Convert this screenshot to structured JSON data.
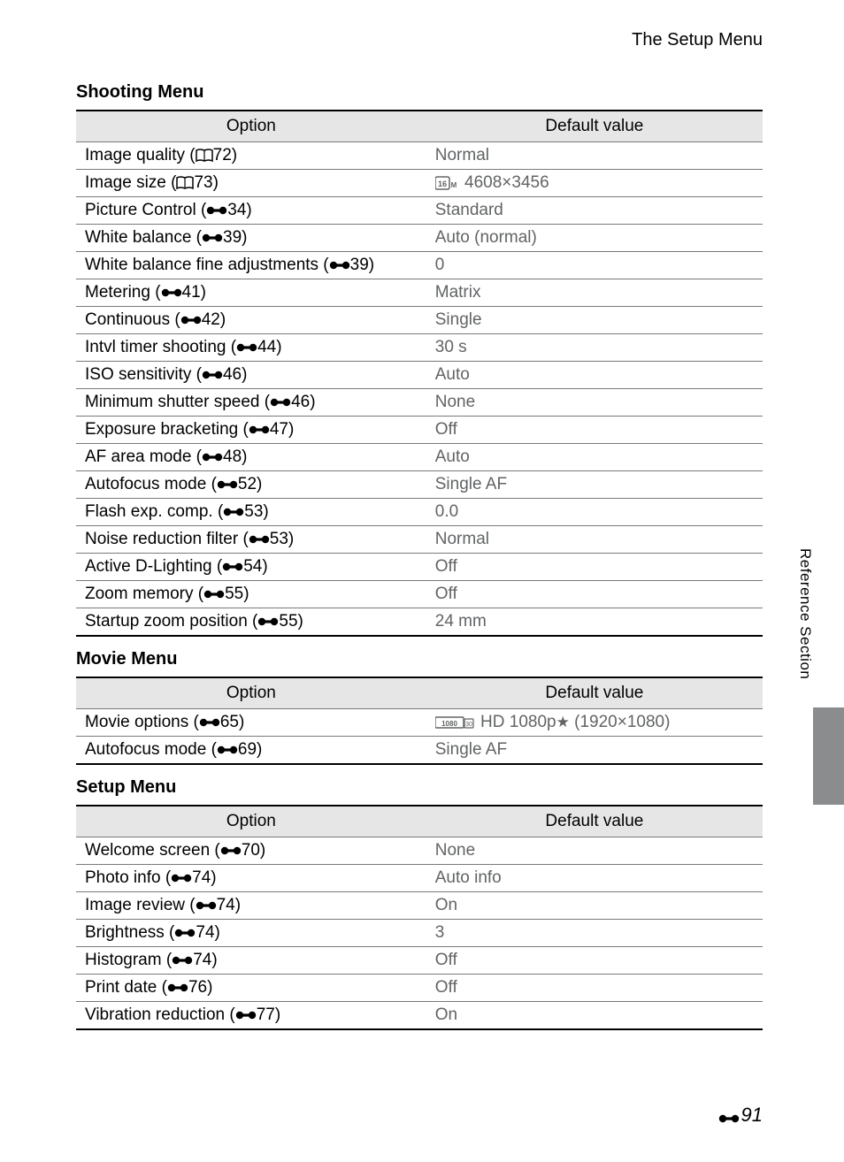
{
  "header": {
    "title": "The Setup Menu"
  },
  "columns": {
    "option": "Option",
    "default": "Default value"
  },
  "sections": [
    {
      "title": "Shooting Menu",
      "rows": [
        {
          "option": "Image quality (",
          "icon": "book",
          "ref": "72)",
          "value": "Normal",
          "valicon": ""
        },
        {
          "option": "Image size (",
          "icon": "book",
          "ref": "73)",
          "value": " 4608×3456",
          "valicon": "16m"
        },
        {
          "option": "Picture Control (",
          "icon": "bolt",
          "ref": "34)",
          "value": "Standard",
          "valicon": ""
        },
        {
          "option": "White balance (",
          "icon": "bolt",
          "ref": "39)",
          "value": "Auto (normal)",
          "valicon": ""
        },
        {
          "option": "White balance fine adjustments (",
          "icon": "bolt",
          "ref": "39)",
          "value": "0",
          "valicon": ""
        },
        {
          "option": "Metering (",
          "icon": "bolt",
          "ref": "41)",
          "value": "Matrix",
          "valicon": ""
        },
        {
          "option": "Continuous (",
          "icon": "bolt",
          "ref": "42)",
          "value": "Single",
          "valicon": ""
        },
        {
          "option": "Intvl timer shooting (",
          "icon": "bolt",
          "ref": "44)",
          "value": "30 s",
          "valicon": ""
        },
        {
          "option": "ISO sensitivity (",
          "icon": "bolt",
          "ref": "46)",
          "value": "Auto",
          "valicon": ""
        },
        {
          "option": "Minimum shutter speed (",
          "icon": "bolt",
          "ref": "46)",
          "value": "None",
          "valicon": ""
        },
        {
          "option": "Exposure bracketing (",
          "icon": "bolt",
          "ref": "47)",
          "value": "Off",
          "valicon": ""
        },
        {
          "option": "AF area mode (",
          "icon": "bolt",
          "ref": "48)",
          "value": "Auto",
          "valicon": ""
        },
        {
          "option": "Autofocus mode (",
          "icon": "bolt",
          "ref": "52)",
          "value": "Single AF",
          "valicon": ""
        },
        {
          "option": "Flash exp. comp. (",
          "icon": "bolt",
          "ref": "53)",
          "value": "0.0",
          "valicon": ""
        },
        {
          "option": "Noise reduction filter (",
          "icon": "bolt",
          "ref": "53)",
          "value": "Normal",
          "valicon": ""
        },
        {
          "option": "Active D-Lighting (",
          "icon": "bolt",
          "ref": "54)",
          "value": "Off",
          "valicon": ""
        },
        {
          "option": "Zoom memory (",
          "icon": "bolt",
          "ref": "55)",
          "value": "Off",
          "valicon": ""
        },
        {
          "option": "Startup zoom position (",
          "icon": "bolt",
          "ref": "55)",
          "value": "24 mm",
          "valicon": ""
        }
      ]
    },
    {
      "title": "Movie Menu",
      "rows": [
        {
          "option": "Movie options (",
          "icon": "bolt",
          "ref": "65)",
          "value": " HD 1080p★ (1920×1080)",
          "valicon": "1080"
        },
        {
          "option": "Autofocus mode (",
          "icon": "bolt",
          "ref": "69)",
          "value": "Single AF",
          "valicon": ""
        }
      ]
    },
    {
      "title": "Setup Menu",
      "rows": [
        {
          "option": "Welcome screen (",
          "icon": "bolt",
          "ref": "70)",
          "value": "None",
          "valicon": ""
        },
        {
          "option": "Photo info (",
          "icon": "bolt",
          "ref": "74)",
          "value": "Auto info",
          "valicon": ""
        },
        {
          "option": "Image review (",
          "icon": "bolt",
          "ref": "74)",
          "value": "On",
          "valicon": ""
        },
        {
          "option": "Brightness (",
          "icon": "bolt",
          "ref": "74)",
          "value": "3",
          "valicon": ""
        },
        {
          "option": "Histogram (",
          "icon": "bolt",
          "ref": "74)",
          "value": "Off",
          "valicon": ""
        },
        {
          "option": "Print date (",
          "icon": "bolt",
          "ref": "76)",
          "value": "Off",
          "valicon": ""
        },
        {
          "option": "Vibration reduction (",
          "icon": "bolt",
          "ref": "77)",
          "value": "On",
          "valicon": ""
        }
      ]
    }
  ],
  "side": {
    "text": "Reference Section"
  },
  "pagenum": "91",
  "style": {
    "header_bg": "#e6e6e6",
    "border_strong": "#000000",
    "border_light": "#77797c",
    "value_color": "#616365",
    "sidetab_color": "#8b8c8e",
    "font_size_body": 19,
    "font_size_title": 20
  }
}
